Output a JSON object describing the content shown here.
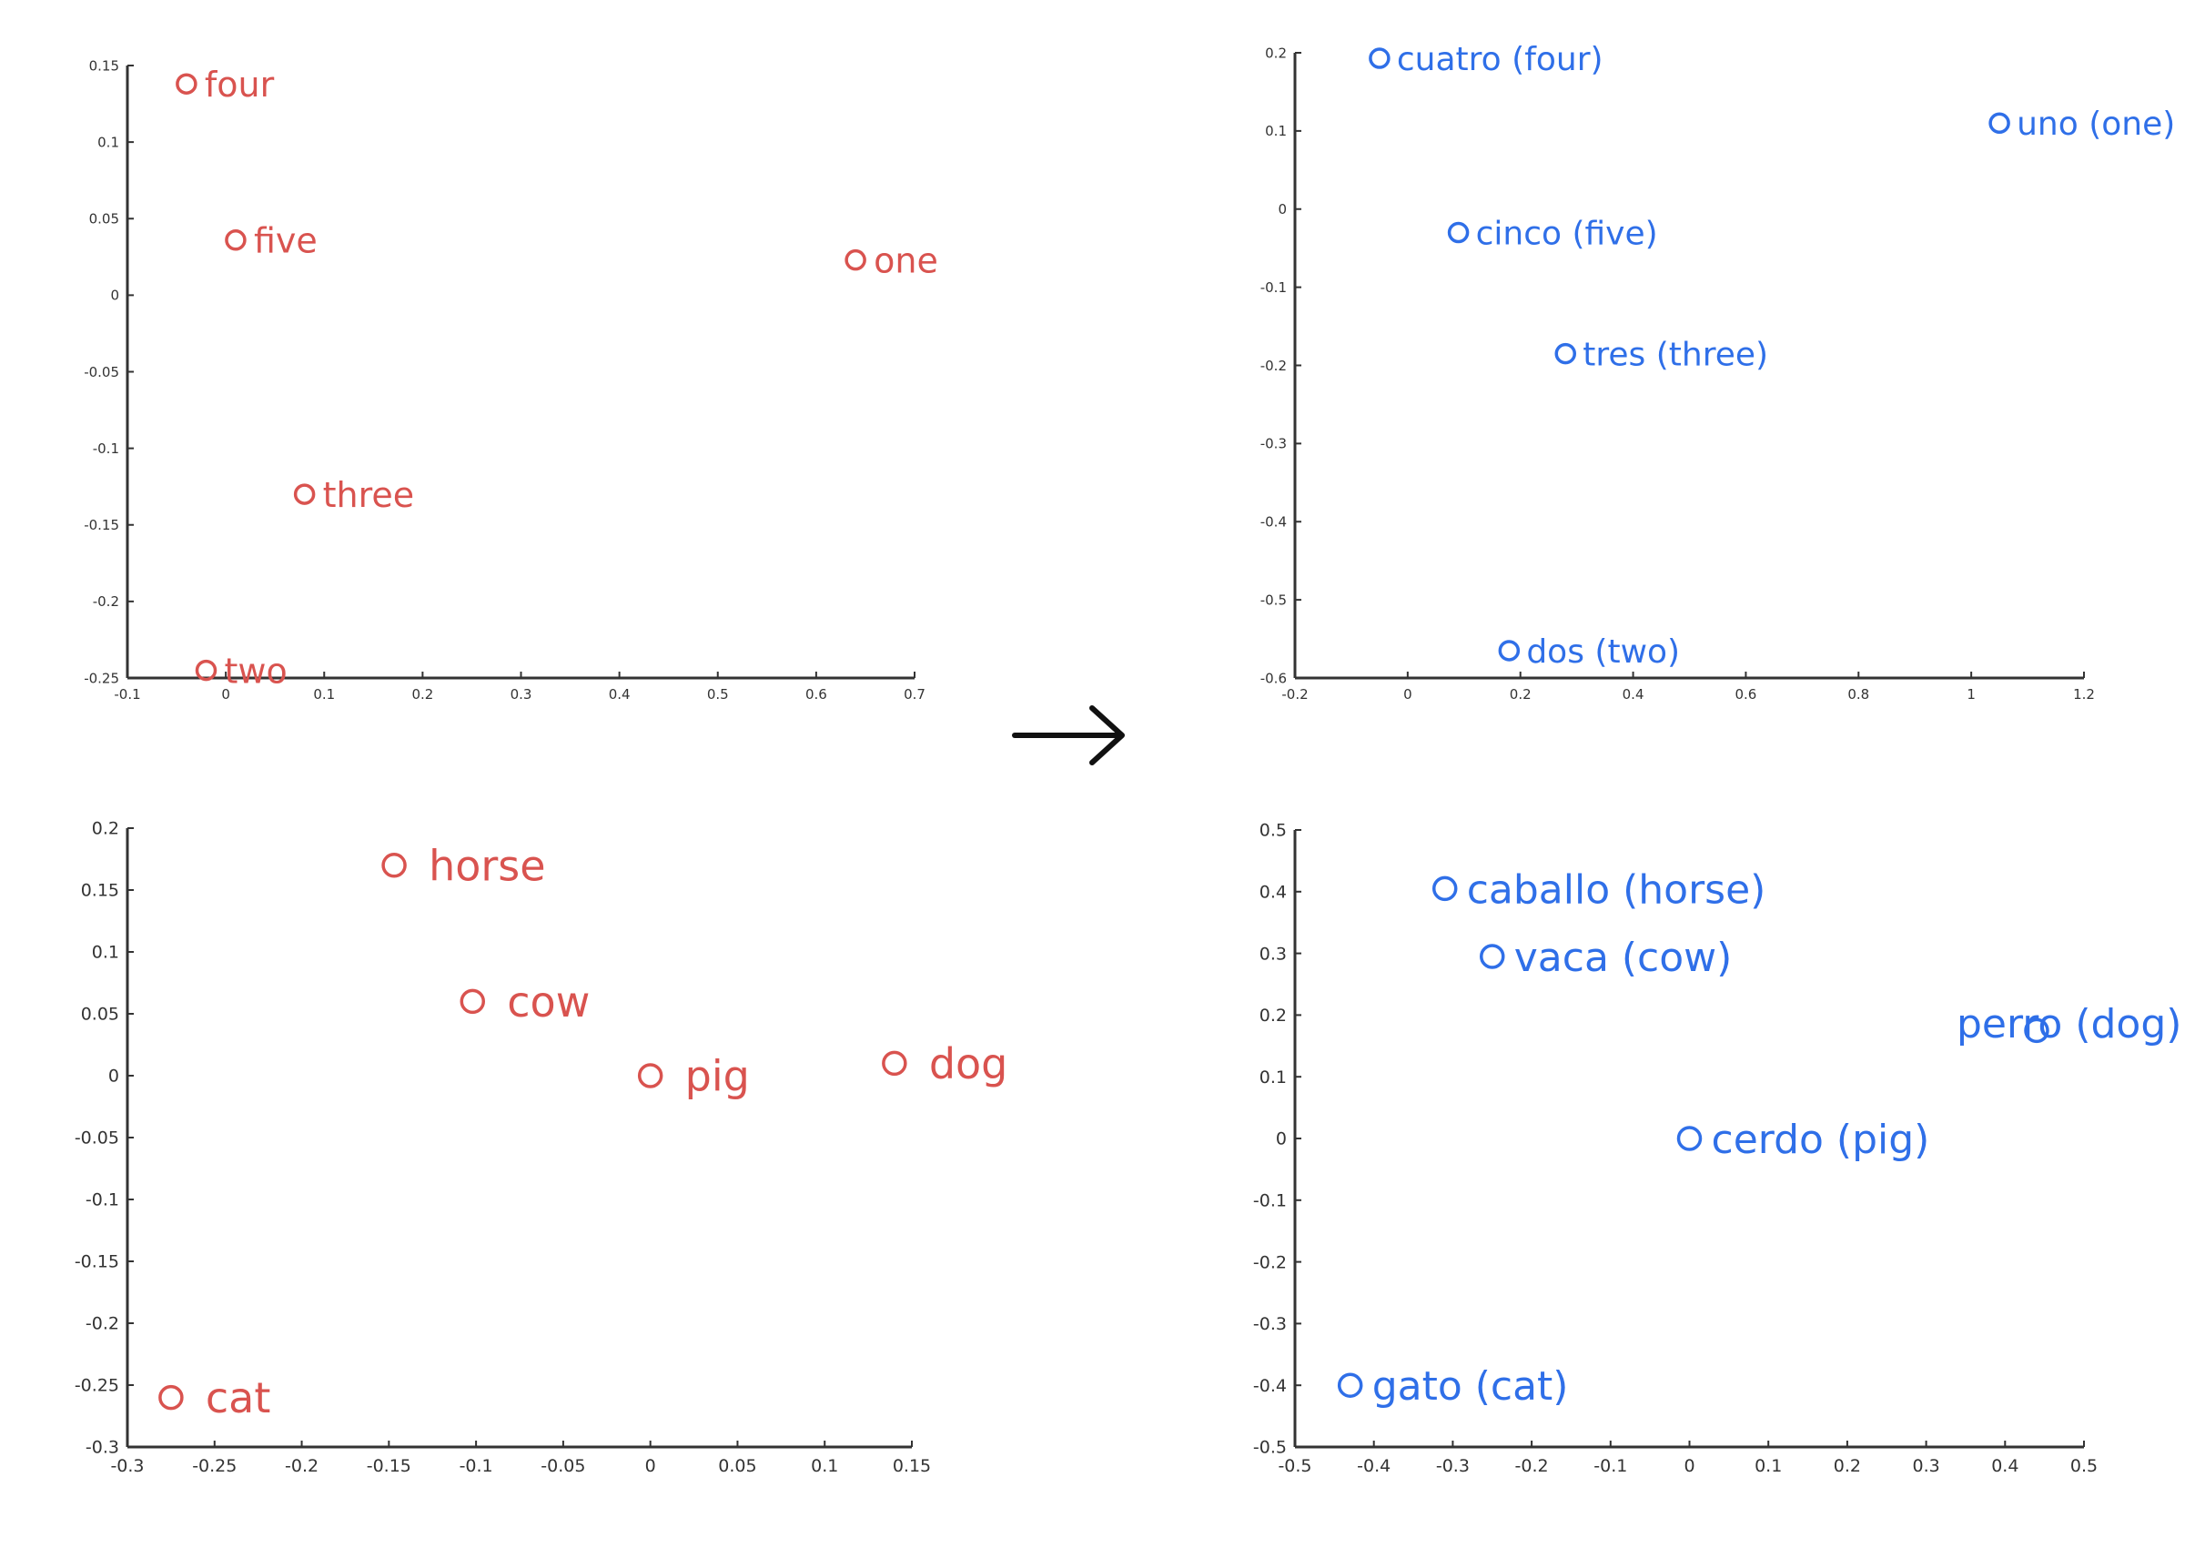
{
  "colors": {
    "english": "#d9534f",
    "spanish": "#2f6fe8",
    "axis": "#333333"
  },
  "arrow": "→",
  "chart_data": [
    {
      "type": "scatter",
      "series": [
        {
          "name": "",
          "color": "#d9534f",
          "points": [
            {
              "x": -0.04,
              "y": 0.138,
              "label": "four"
            },
            {
              "x": 0.01,
              "y": 0.036,
              "label": "five"
            },
            {
              "x": 0.64,
              "y": 0.023,
              "label": "one"
            },
            {
              "x": 0.08,
              "y": -0.13,
              "label": "three"
            },
            {
              "x": -0.02,
              "y": -0.245,
              "label": "two"
            }
          ]
        }
      ],
      "xlim": [
        -0.1,
        0.7
      ],
      "ylim": [
        -0.25,
        0.15
      ],
      "xticks": [
        "-0.1",
        "0",
        "0.1",
        "0.2",
        "0.3",
        "0.4",
        "0.5",
        "0.6",
        "0.7"
      ],
      "yticks": [
        "-0.25",
        "-0.2",
        "-0.15",
        "-0.1",
        "-0.05",
        "0",
        "0.05",
        "0.1",
        "0.15"
      ],
      "grid": false
    },
    {
      "type": "scatter",
      "series": [
        {
          "name": "",
          "color": "#2f6fe8",
          "points": [
            {
              "x": -0.05,
              "y": 0.193,
              "label": "cuatro (four)"
            },
            {
              "x": 1.05,
              "y": 0.11,
              "label": "uno (one)"
            },
            {
              "x": 0.09,
              "y": -0.03,
              "label": "cinco (five)"
            },
            {
              "x": 0.28,
              "y": -0.185,
              "label": "tres (three)"
            },
            {
              "x": 0.18,
              "y": -0.565,
              "label": "dos (two)"
            }
          ]
        }
      ],
      "xlim": [
        -0.2,
        1.2
      ],
      "ylim": [
        -0.6,
        0.2
      ],
      "xticks": [
        "-0.2",
        "0",
        "0.2",
        "0.4",
        "0.6",
        "0.8",
        "1",
        "1.2"
      ],
      "yticks": [
        "-0.6",
        "-0.5",
        "-0.4",
        "-0.3",
        "-0.2",
        "-0.1",
        "0",
        "0.1",
        "0.2"
      ],
      "grid": false
    },
    {
      "type": "scatter",
      "series": [
        {
          "name": "",
          "color": "#d9534f",
          "points": [
            {
              "x": -0.147,
              "y": 0.17,
              "label": "horse"
            },
            {
              "x": -0.102,
              "y": 0.06,
              "label": "cow"
            },
            {
              "x": 0.0,
              "y": 0.0,
              "label": "pig"
            },
            {
              "x": 0.14,
              "y": 0.01,
              "label": "dog"
            },
            {
              "x": -0.275,
              "y": -0.26,
              "label": "cat"
            }
          ]
        }
      ],
      "xlim": [
        -0.3,
        0.15
      ],
      "ylim": [
        -0.3,
        0.2
      ],
      "xticks": [
        "-0.3",
        "-0.25",
        "-0.2",
        "-0.15",
        "-0.1",
        "-0.05",
        "0",
        "0.05",
        "0.1",
        "0.15"
      ],
      "yticks": [
        "-0.3",
        "-0.25",
        "-0.2",
        "-0.15",
        "-0.1",
        "-0.05",
        "0",
        "0.05",
        "0.1",
        "0.15",
        "0.2"
      ],
      "grid": false
    },
    {
      "type": "scatter",
      "series": [
        {
          "name": "",
          "color": "#2f6fe8",
          "points": [
            {
              "x": -0.31,
              "y": 0.405,
              "label": "caballo (horse)"
            },
            {
              "x": -0.25,
              "y": 0.295,
              "label": "vaca (cow)"
            },
            {
              "x": 0.44,
              "y": 0.175,
              "label": "perro (dog)"
            },
            {
              "x": 0.0,
              "y": 0.0,
              "label": "cerdo (pig)"
            },
            {
              "x": -0.43,
              "y": -0.4,
              "label": "gato (cat)"
            }
          ]
        }
      ],
      "xlim": [
        -0.5,
        0.5
      ],
      "ylim": [
        -0.5,
        0.5
      ],
      "xticks": [
        "-0.5",
        "-0.4",
        "-0.3",
        "-0.2",
        "-0.1",
        "0",
        "0.1",
        "0.2",
        "0.3",
        "0.4",
        "0.5"
      ],
      "yticks": [
        "-0.5",
        "-0.4",
        "-0.3",
        "-0.2",
        "-0.1",
        "0",
        "0.1",
        "0.2",
        "0.3",
        "0.4",
        "0.5"
      ],
      "grid": false
    }
  ]
}
